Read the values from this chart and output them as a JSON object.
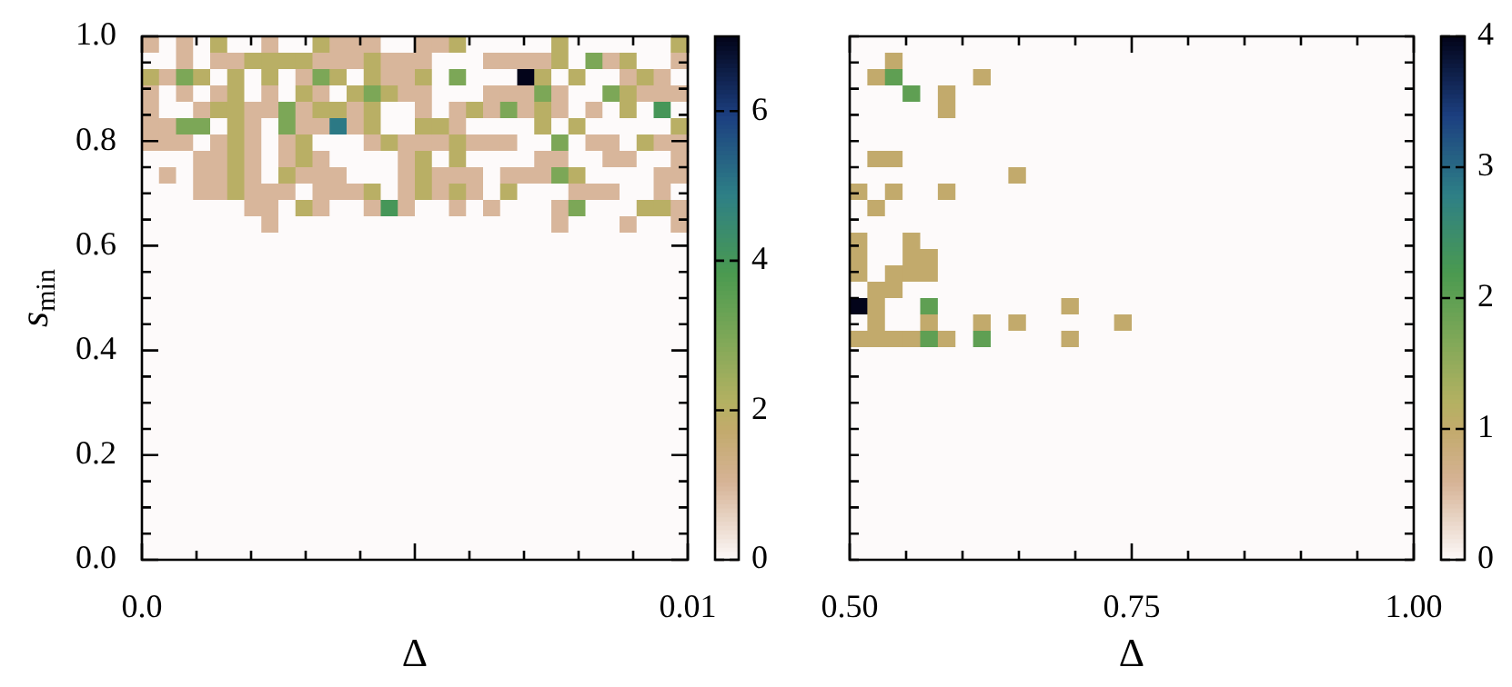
{
  "chart_data": [
    {
      "type": "heatmap",
      "xlabel": "Δ",
      "ylabel": "s$_{min}$",
      "xlim": [
        0,
        0.01
      ],
      "ylim": [
        0,
        1
      ],
      "xticks": [
        {
          "value": 0,
          "label": "0.0"
        },
        {
          "value": 0.001,
          "label": null
        },
        {
          "value": 0.002,
          "label": null
        },
        {
          "value": 0.003,
          "label": null
        },
        {
          "value": 0.004,
          "label": null
        },
        {
          "value": 0.005,
          "label": null
        },
        {
          "value": 0.006,
          "label": null
        },
        {
          "value": 0.007,
          "label": null
        },
        {
          "value": 0.008,
          "label": null
        },
        {
          "value": 0.009,
          "label": null
        },
        0.01
      ],
      "yticks": [
        {
          "value": 0,
          "label": "0.0"
        },
        {
          "value": 0.05,
          "label": null
        },
        {
          "value": 0.1,
          "label": null
        },
        {
          "value": 0.15,
          "label": null
        },
        {
          "value": 0.2,
          "label": "0.2"
        },
        {
          "value": 0.25,
          "label": null
        },
        {
          "value": 0.3,
          "label": null
        },
        {
          "value": 0.35,
          "label": null
        },
        {
          "value": 0.4,
          "label": "0.4"
        },
        {
          "value": 0.45,
          "label": null
        },
        {
          "value": 0.5,
          "label": null
        },
        {
          "value": 0.55,
          "label": null
        },
        {
          "value": 0.6,
          "label": "0.6"
        },
        {
          "value": 0.65,
          "label": null
        },
        {
          "value": 0.7,
          "label": null
        },
        {
          "value": 0.75,
          "label": null
        },
        {
          "value": 0.8,
          "label": "0.8"
        },
        {
          "value": 0.85,
          "label": null
        },
        {
          "value": 0.9,
          "label": null
        },
        {
          "value": 0.95,
          "label": null
        },
        {
          "value": 1,
          "label": "1.0"
        }
      ],
      "clim": [
        0,
        7
      ],
      "cticks": [
        0,
        2,
        4,
        6
      ],
      "cells": [
        [
          1,
          0,
          1,
          0,
          2,
          0,
          0,
          1,
          0,
          0,
          2,
          1,
          1,
          1,
          0,
          0,
          1,
          1,
          2,
          0,
          0,
          0,
          0,
          0,
          2,
          0,
          0,
          0,
          0,
          0,
          0,
          2
        ],
        [
          0,
          0,
          1,
          0,
          1,
          1,
          2,
          2,
          2,
          2,
          1,
          1,
          1,
          2,
          1,
          1,
          1,
          0,
          0,
          0,
          1,
          1,
          1,
          1,
          2,
          0,
          3,
          1,
          2,
          0,
          0,
          1
        ],
        [
          2,
          1,
          3,
          2,
          0,
          2,
          0,
          2,
          0,
          1,
          3,
          2,
          0,
          2,
          1,
          1,
          2,
          0,
          3,
          0,
          0,
          0,
          7,
          2,
          0,
          2,
          0,
          0,
          1,
          2,
          1,
          0
        ],
        [
          1,
          0,
          1,
          0,
          1,
          2,
          0,
          1,
          0,
          2,
          1,
          0,
          2,
          3,
          2,
          1,
          1,
          0,
          0,
          0,
          1,
          1,
          1,
          3,
          1,
          0,
          0,
          3,
          2,
          1,
          1,
          1
        ],
        [
          1,
          0,
          0,
          1,
          2,
          2,
          1,
          1,
          3,
          1,
          2,
          2,
          1,
          2,
          0,
          0,
          1,
          0,
          1,
          2,
          1,
          3,
          1,
          2,
          1,
          0,
          1,
          0,
          2,
          0,
          4,
          0
        ],
        [
          1,
          1,
          3,
          3,
          0,
          2,
          1,
          0,
          3,
          1,
          1,
          5,
          1,
          2,
          0,
          0,
          2,
          2,
          1,
          0,
          0,
          0,
          0,
          2,
          0,
          2,
          0,
          0,
          0,
          0,
          0,
          2
        ],
        [
          1,
          1,
          1,
          0,
          1,
          2,
          1,
          0,
          1,
          2,
          0,
          0,
          0,
          1,
          2,
          1,
          1,
          1,
          2,
          1,
          1,
          1,
          0,
          0,
          3,
          0,
          1,
          1,
          0,
          2,
          1,
          1
        ],
        [
          0,
          0,
          0,
          1,
          1,
          2,
          1,
          0,
          1,
          2,
          1,
          0,
          0,
          0,
          0,
          1,
          2,
          0,
          2,
          0,
          0,
          0,
          0,
          1,
          1,
          0,
          0,
          1,
          1,
          0,
          0,
          1
        ],
        [
          0,
          1,
          0,
          1,
          1,
          2,
          1,
          0,
          2,
          1,
          1,
          1,
          0,
          0,
          0,
          1,
          2,
          1,
          1,
          1,
          0,
          1,
          1,
          1,
          3,
          2,
          0,
          0,
          0,
          0,
          1,
          1
        ],
        [
          0,
          0,
          0,
          1,
          1,
          2,
          1,
          1,
          1,
          0,
          1,
          1,
          1,
          2,
          0,
          1,
          2,
          1,
          2,
          1,
          0,
          2,
          0,
          0,
          0,
          1,
          1,
          1,
          0,
          0,
          1,
          0
        ],
        [
          0,
          0,
          0,
          0,
          0,
          0,
          1,
          1,
          0,
          2,
          1,
          0,
          0,
          1,
          4,
          1,
          0,
          0,
          1,
          0,
          1,
          0,
          0,
          0,
          1,
          3,
          0,
          0,
          0,
          2,
          2,
          1
        ],
        [
          0,
          0,
          0,
          0,
          0,
          0,
          0,
          1,
          0,
          0,
          0,
          0,
          0,
          0,
          0,
          0,
          0,
          0,
          0,
          0,
          0,
          0,
          0,
          0,
          1,
          0,
          0,
          0,
          1,
          0,
          0,
          1
        ],
        [
          0,
          0,
          0,
          0,
          0,
          0,
          0,
          0,
          0,
          0,
          0,
          0,
          0,
          0,
          0,
          0,
          0,
          0,
          0,
          0,
          0,
          0,
          0,
          0,
          0,
          0,
          0,
          0,
          0,
          0,
          0,
          0
        ],
        [
          0,
          0,
          0,
          0,
          0,
          0,
          0,
          0,
          0,
          0,
          0,
          0,
          0,
          0,
          0,
          0,
          0,
          0,
          0,
          0,
          0,
          0,
          0,
          0,
          0,
          0,
          0,
          0,
          0,
          0,
          0,
          0
        ],
        [
          0,
          0,
          0,
          0,
          0,
          0,
          0,
          0,
          0,
          0,
          0,
          0,
          0,
          0,
          0,
          0,
          0,
          0,
          0,
          0,
          0,
          0,
          0,
          0,
          0,
          0,
          0,
          0,
          0,
          0,
          0,
          0
        ],
        [
          0,
          0,
          0,
          0,
          0,
          0,
          0,
          0,
          0,
          0,
          0,
          0,
          0,
          0,
          0,
          0,
          0,
          0,
          0,
          0,
          0,
          0,
          0,
          0,
          0,
          0,
          0,
          0,
          0,
          0,
          0,
          0
        ],
        [
          0,
          0,
          0,
          0,
          0,
          0,
          0,
          0,
          0,
          0,
          0,
          0,
          0,
          0,
          0,
          0,
          0,
          0,
          0,
          0,
          0,
          0,
          0,
          0,
          0,
          0,
          0,
          0,
          0,
          0,
          0,
          0
        ],
        [
          0,
          0,
          0,
          0,
          0,
          0,
          0,
          0,
          0,
          0,
          0,
          0,
          0,
          0,
          0,
          0,
          0,
          0,
          0,
          0,
          0,
          0,
          0,
          0,
          0,
          0,
          0,
          0,
          0,
          0,
          0,
          0
        ],
        [
          0,
          0,
          0,
          0,
          0,
          0,
          0,
          0,
          0,
          0,
          0,
          0,
          0,
          0,
          0,
          0,
          0,
          0,
          0,
          0,
          0,
          0,
          0,
          0,
          0,
          0,
          0,
          0,
          0,
          0,
          0,
          0
        ],
        [
          0,
          0,
          0,
          0,
          0,
          0,
          0,
          0,
          0,
          0,
          0,
          0,
          0,
          0,
          0,
          0,
          0,
          0,
          0,
          0,
          0,
          0,
          0,
          0,
          0,
          0,
          0,
          0,
          0,
          0,
          0,
          0
        ],
        [
          0,
          0,
          0,
          0,
          0,
          0,
          0,
          0,
          0,
          0,
          0,
          0,
          0,
          0,
          0,
          0,
          0,
          0,
          0,
          0,
          0,
          0,
          0,
          0,
          0,
          0,
          0,
          0,
          0,
          0,
          0,
          0
        ],
        [
          0,
          0,
          0,
          0,
          0,
          0,
          0,
          0,
          0,
          0,
          0,
          0,
          0,
          0,
          0,
          0,
          0,
          0,
          0,
          0,
          0,
          0,
          0,
          0,
          0,
          0,
          0,
          0,
          0,
          0,
          0,
          0
        ],
        [
          0,
          0,
          0,
          0,
          0,
          0,
          0,
          0,
          0,
          0,
          0,
          0,
          0,
          0,
          0,
          0,
          0,
          0,
          0,
          0,
          0,
          0,
          0,
          0,
          0,
          0,
          0,
          0,
          0,
          0,
          0,
          0
        ],
        [
          0,
          0,
          0,
          0,
          0,
          0,
          0,
          0,
          0,
          0,
          0,
          0,
          0,
          0,
          0,
          0,
          0,
          0,
          0,
          0,
          0,
          0,
          0,
          0,
          0,
          0,
          0,
          0,
          0,
          0,
          0,
          0
        ],
        [
          0,
          0,
          0,
          0,
          0,
          0,
          0,
          0,
          0,
          0,
          0,
          0,
          0,
          0,
          0,
          0,
          0,
          0,
          0,
          0,
          0,
          0,
          0,
          0,
          0,
          0,
          0,
          0,
          0,
          0,
          0,
          0
        ],
        [
          0,
          0,
          0,
          0,
          0,
          0,
          0,
          0,
          0,
          0,
          0,
          0,
          0,
          0,
          0,
          0,
          0,
          0,
          0,
          0,
          0,
          0,
          0,
          0,
          0,
          0,
          0,
          0,
          0,
          0,
          0,
          0
        ],
        [
          0,
          0,
          0,
          0,
          0,
          0,
          0,
          0,
          0,
          0,
          0,
          0,
          0,
          0,
          0,
          0,
          0,
          0,
          0,
          0,
          0,
          0,
          0,
          0,
          0,
          0,
          0,
          0,
          0,
          0,
          0,
          0
        ],
        [
          0,
          0,
          0,
          0,
          0,
          0,
          0,
          0,
          0,
          0,
          0,
          0,
          0,
          0,
          0,
          0,
          0,
          0,
          0,
          0,
          0,
          0,
          0,
          0,
          0,
          0,
          0,
          0,
          0,
          0,
          0,
          0
        ],
        [
          0,
          0,
          0,
          0,
          0,
          0,
          0,
          0,
          0,
          0,
          0,
          0,
          0,
          0,
          0,
          0,
          0,
          0,
          0,
          0,
          0,
          0,
          0,
          0,
          0,
          0,
          0,
          0,
          0,
          0,
          0,
          0
        ],
        [
          0,
          0,
          0,
          0,
          0,
          0,
          0,
          0,
          0,
          0,
          0,
          0,
          0,
          0,
          0,
          0,
          0,
          0,
          0,
          0,
          0,
          0,
          0,
          0,
          0,
          0,
          0,
          0,
          0,
          0,
          0,
          0
        ],
        [
          0,
          0,
          0,
          0,
          0,
          0,
          0,
          0,
          0,
          0,
          0,
          0,
          0,
          0,
          0,
          0,
          0,
          0,
          0,
          0,
          0,
          0,
          0,
          0,
          0,
          0,
          0,
          0,
          0,
          0,
          0,
          0
        ],
        [
          0,
          0,
          0,
          0,
          0,
          0,
          0,
          0,
          0,
          0,
          0,
          0,
          0,
          0,
          0,
          0,
          0,
          0,
          0,
          0,
          0,
          0,
          0,
          0,
          0,
          0,
          0,
          0,
          0,
          0,
          0,
          0
        ]
      ]
    },
    {
      "type": "heatmap",
      "xlabel": "Δ",
      "xlim": [
        0.5,
        1
      ],
      "ylim": [
        0,
        1
      ],
      "tick_labels": "x",
      "xticks": [
        {
          "value": 0.5,
          "label": "0.50"
        },
        {
          "value": 0.55,
          "label": null
        },
        {
          "value": 0.6,
          "label": null
        },
        {
          "value": 0.65,
          "label": null
        },
        {
          "value": 0.7,
          "label": null
        },
        {
          "value": 0.75,
          "label": "0.75"
        },
        {
          "value": 0.8,
          "label": null
        },
        {
          "value": 0.85,
          "label": null
        },
        {
          "value": 0.9,
          "label": null
        },
        {
          "value": 0.95,
          "label": null
        },
        {
          "value": 1,
          "label": "1.00"
        }
      ],
      "yticks": [
        {
          "value": 0,
          "label": null
        },
        {
          "value": 0.05,
          "label": null
        },
        {
          "value": 0.1,
          "label": null
        },
        {
          "value": 0.15,
          "label": null
        },
        {
          "value": 0.2,
          "label": null
        },
        {
          "value": 0.25,
          "label": null
        },
        {
          "value": 0.3,
          "label": null
        },
        {
          "value": 0.35,
          "label": null
        },
        {
          "value": 0.4,
          "label": null
        },
        {
          "value": 0.45,
          "label": null
        },
        {
          "value": 0.5,
          "label": null
        },
        {
          "value": 0.55,
          "label": null
        },
        {
          "value": 0.6,
          "label": null
        },
        {
          "value": 0.65,
          "label": null
        },
        {
          "value": 0.7,
          "label": null
        },
        {
          "value": 0.75,
          "label": null
        },
        {
          "value": 0.8,
          "label": null
        },
        {
          "value": 0.85,
          "label": null
        },
        {
          "value": 0.9,
          "label": null
        },
        {
          "value": 0.95,
          "label": null
        },
        {
          "value": 1,
          "label": null
        }
      ],
      "clim": [
        0,
        4
      ],
      "cticks": [
        0,
        1,
        2,
        3,
        4
      ],
      "cells": [
        [
          0,
          0,
          0,
          0,
          0,
          0,
          0,
          0,
          0,
          0,
          0,
          0,
          0,
          0,
          0,
          0,
          0,
          0,
          0,
          0,
          0,
          0,
          0,
          0,
          0,
          0,
          0,
          0,
          0,
          0,
          0,
          0
        ],
        [
          0,
          0,
          1,
          0,
          0,
          0,
          0,
          0,
          0,
          0,
          0,
          0,
          0,
          0,
          0,
          0,
          0,
          0,
          0,
          0,
          0,
          0,
          0,
          0,
          0,
          0,
          0,
          0,
          0,
          0,
          0,
          0
        ],
        [
          0,
          1,
          2,
          0,
          0,
          0,
          0,
          1,
          0,
          0,
          0,
          0,
          0,
          0,
          0,
          0,
          0,
          0,
          0,
          0,
          0,
          0,
          0,
          0,
          0,
          0,
          0,
          0,
          0,
          0,
          0,
          0
        ],
        [
          0,
          0,
          0,
          2,
          0,
          1,
          0,
          0,
          0,
          0,
          0,
          0,
          0,
          0,
          0,
          0,
          0,
          0,
          0,
          0,
          0,
          0,
          0,
          0,
          0,
          0,
          0,
          0,
          0,
          0,
          0,
          0
        ],
        [
          0,
          0,
          0,
          0,
          0,
          1,
          0,
          0,
          0,
          0,
          0,
          0,
          0,
          0,
          0,
          0,
          0,
          0,
          0,
          0,
          0,
          0,
          0,
          0,
          0,
          0,
          0,
          0,
          0,
          0,
          0,
          0
        ],
        [
          0,
          0,
          0,
          0,
          0,
          0,
          0,
          0,
          0,
          0,
          0,
          0,
          0,
          0,
          0,
          0,
          0,
          0,
          0,
          0,
          0,
          0,
          0,
          0,
          0,
          0,
          0,
          0,
          0,
          0,
          0,
          0
        ],
        [
          0,
          0,
          0,
          0,
          0,
          0,
          0,
          0,
          0,
          0,
          0,
          0,
          0,
          0,
          0,
          0,
          0,
          0,
          0,
          0,
          0,
          0,
          0,
          0,
          0,
          0,
          0,
          0,
          0,
          0,
          0,
          0
        ],
        [
          0,
          1,
          1,
          0,
          0,
          0,
          0,
          0,
          0,
          0,
          0,
          0,
          0,
          0,
          0,
          0,
          0,
          0,
          0,
          0,
          0,
          0,
          0,
          0,
          0,
          0,
          0,
          0,
          0,
          0,
          0,
          0
        ],
        [
          0,
          0,
          0,
          0,
          0,
          0,
          0,
          0,
          0,
          1,
          0,
          0,
          0,
          0,
          0,
          0,
          0,
          0,
          0,
          0,
          0,
          0,
          0,
          0,
          0,
          0,
          0,
          0,
          0,
          0,
          0,
          0
        ],
        [
          1,
          0,
          1,
          0,
          0,
          1,
          0,
          0,
          0,
          0,
          0,
          0,
          0,
          0,
          0,
          0,
          0,
          0,
          0,
          0,
          0,
          0,
          0,
          0,
          0,
          0,
          0,
          0,
          0,
          0,
          0,
          0
        ],
        [
          0,
          1,
          0,
          0,
          0,
          0,
          0,
          0,
          0,
          0,
          0,
          0,
          0,
          0,
          0,
          0,
          0,
          0,
          0,
          0,
          0,
          0,
          0,
          0,
          0,
          0,
          0,
          0,
          0,
          0,
          0,
          0
        ],
        [
          0,
          0,
          0,
          0,
          0,
          0,
          0,
          0,
          0,
          0,
          0,
          0,
          0,
          0,
          0,
          0,
          0,
          0,
          0,
          0,
          0,
          0,
          0,
          0,
          0,
          0,
          0,
          0,
          0,
          0,
          0,
          0
        ],
        [
          1,
          0,
          0,
          1,
          0,
          0,
          0,
          0,
          0,
          0,
          0,
          0,
          0,
          0,
          0,
          0,
          0,
          0,
          0,
          0,
          0,
          0,
          0,
          0,
          0,
          0,
          0,
          0,
          0,
          0,
          0,
          0
        ],
        [
          1,
          0,
          0,
          1,
          1,
          0,
          0,
          0,
          0,
          0,
          0,
          0,
          0,
          0,
          0,
          0,
          0,
          0,
          0,
          0,
          0,
          0,
          0,
          0,
          0,
          0,
          0,
          0,
          0,
          0,
          0,
          0
        ],
        [
          1,
          0,
          1,
          1,
          1,
          0,
          0,
          0,
          0,
          0,
          0,
          0,
          0,
          0,
          0,
          0,
          0,
          0,
          0,
          0,
          0,
          0,
          0,
          0,
          0,
          0,
          0,
          0,
          0,
          0,
          0,
          0
        ],
        [
          0,
          1,
          1,
          0,
          0,
          0,
          0,
          0,
          0,
          0,
          0,
          0,
          0,
          0,
          0,
          0,
          0,
          0,
          0,
          0,
          0,
          0,
          0,
          0,
          0,
          0,
          0,
          0,
          0,
          0,
          0,
          0
        ],
        [
          4,
          1,
          0,
          0,
          2,
          0,
          0,
          0,
          0,
          0,
          0,
          0,
          1,
          0,
          0,
          0,
          0,
          0,
          0,
          0,
          0,
          0,
          0,
          0,
          0,
          0,
          0,
          0,
          0,
          0,
          0,
          0
        ],
        [
          0,
          1,
          0,
          0,
          1,
          0,
          0,
          1,
          0,
          1,
          0,
          0,
          0,
          0,
          0,
          1,
          0,
          0,
          0,
          0,
          0,
          0,
          0,
          0,
          0,
          0,
          0,
          0,
          0,
          0,
          0,
          0
        ],
        [
          1,
          1,
          1,
          1,
          2,
          1,
          0,
          2,
          0,
          0,
          0,
          0,
          1,
          0,
          0,
          0,
          0,
          0,
          0,
          0,
          0,
          0,
          0,
          0,
          0,
          0,
          0,
          0,
          0,
          0,
          0,
          0
        ],
        [
          0,
          0,
          0,
          0,
          0,
          0,
          0,
          0,
          0,
          0,
          0,
          0,
          0,
          0,
          0,
          0,
          0,
          0,
          0,
          0,
          0,
          0,
          0,
          0,
          0,
          0,
          0,
          0,
          0,
          0,
          0,
          0
        ],
        [
          0,
          0,
          0,
          0,
          0,
          0,
          0,
          0,
          0,
          0,
          0,
          0,
          0,
          0,
          0,
          0,
          0,
          0,
          0,
          0,
          0,
          0,
          0,
          0,
          0,
          0,
          0,
          0,
          0,
          0,
          0,
          0
        ],
        [
          0,
          0,
          0,
          0,
          0,
          0,
          0,
          0,
          0,
          0,
          0,
          0,
          0,
          0,
          0,
          0,
          0,
          0,
          0,
          0,
          0,
          0,
          0,
          0,
          0,
          0,
          0,
          0,
          0,
          0,
          0,
          0
        ],
        [
          0,
          0,
          0,
          0,
          0,
          0,
          0,
          0,
          0,
          0,
          0,
          0,
          0,
          0,
          0,
          0,
          0,
          0,
          0,
          0,
          0,
          0,
          0,
          0,
          0,
          0,
          0,
          0,
          0,
          0,
          0,
          0
        ],
        [
          0,
          0,
          0,
          0,
          0,
          0,
          0,
          0,
          0,
          0,
          0,
          0,
          0,
          0,
          0,
          0,
          0,
          0,
          0,
          0,
          0,
          0,
          0,
          0,
          0,
          0,
          0,
          0,
          0,
          0,
          0,
          0
        ],
        [
          0,
          0,
          0,
          0,
          0,
          0,
          0,
          0,
          0,
          0,
          0,
          0,
          0,
          0,
          0,
          0,
          0,
          0,
          0,
          0,
          0,
          0,
          0,
          0,
          0,
          0,
          0,
          0,
          0,
          0,
          0,
          0
        ],
        [
          0,
          0,
          0,
          0,
          0,
          0,
          0,
          0,
          0,
          0,
          0,
          0,
          0,
          0,
          0,
          0,
          0,
          0,
          0,
          0,
          0,
          0,
          0,
          0,
          0,
          0,
          0,
          0,
          0,
          0,
          0,
          0
        ],
        [
          0,
          0,
          0,
          0,
          0,
          0,
          0,
          0,
          0,
          0,
          0,
          0,
          0,
          0,
          0,
          0,
          0,
          0,
          0,
          0,
          0,
          0,
          0,
          0,
          0,
          0,
          0,
          0,
          0,
          0,
          0,
          0
        ],
        [
          0,
          0,
          0,
          0,
          0,
          0,
          0,
          0,
          0,
          0,
          0,
          0,
          0,
          0,
          0,
          0,
          0,
          0,
          0,
          0,
          0,
          0,
          0,
          0,
          0,
          0,
          0,
          0,
          0,
          0,
          0,
          0
        ],
        [
          0,
          0,
          0,
          0,
          0,
          0,
          0,
          0,
          0,
          0,
          0,
          0,
          0,
          0,
          0,
          0,
          0,
          0,
          0,
          0,
          0,
          0,
          0,
          0,
          0,
          0,
          0,
          0,
          0,
          0,
          0,
          0
        ],
        [
          0,
          0,
          0,
          0,
          0,
          0,
          0,
          0,
          0,
          0,
          0,
          0,
          0,
          0,
          0,
          0,
          0,
          0,
          0,
          0,
          0,
          0,
          0,
          0,
          0,
          0,
          0,
          0,
          0,
          0,
          0,
          0
        ],
        [
          0,
          0,
          0,
          0,
          0,
          0,
          0,
          0,
          0,
          0,
          0,
          0,
          0,
          0,
          0,
          0,
          0,
          0,
          0,
          0,
          0,
          0,
          0,
          0,
          0,
          0,
          0,
          0,
          0,
          0,
          0,
          0
        ],
        [
          0,
          0,
          0,
          0,
          0,
          0,
          0,
          0,
          0,
          0,
          0,
          0,
          0,
          0,
          0,
          0,
          0,
          0,
          0,
          0,
          0,
          0,
          0,
          0,
          0,
          0,
          0,
          0,
          0,
          0,
          0,
          0
        ]
      ]
    }
  ]
}
